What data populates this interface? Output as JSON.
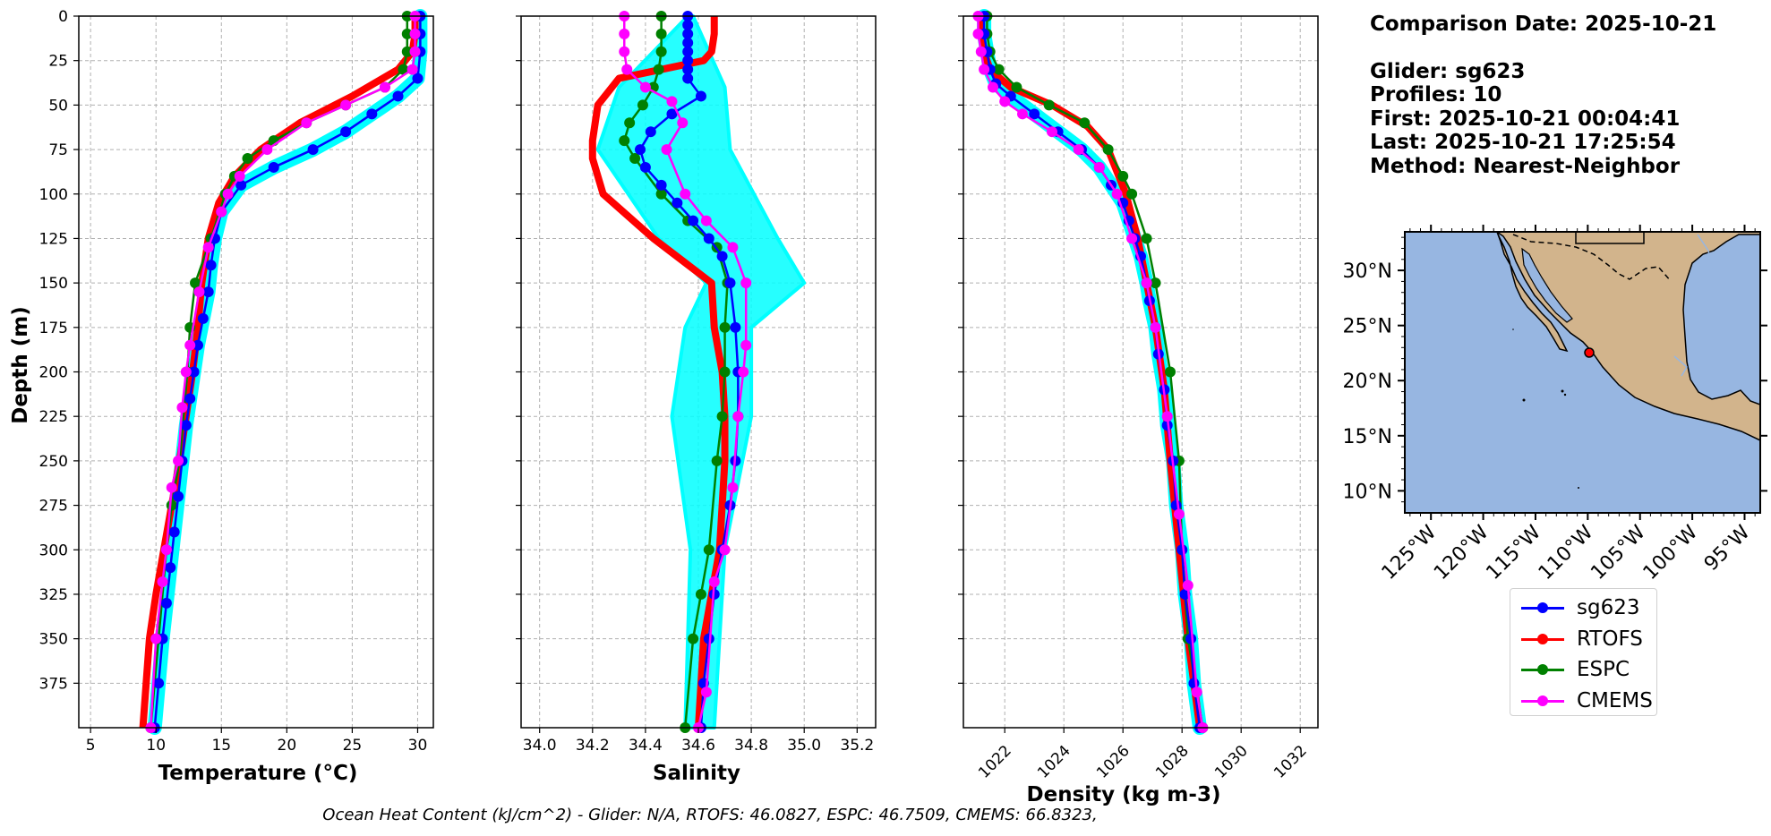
{
  "info": {
    "comparison_date": "Comparison Date: 2025-10-21",
    "glider": "Glider: sg623",
    "profiles": "Profiles: 10",
    "first": "First: 2025-10-21 00:04:41",
    "last": "Last: 2025-10-21 17:25:54",
    "method": "Method: Nearest-Neighbor"
  },
  "footer": "Ocean Heat Content (kJ/cm^2) - Glider: N/A,  RTOFS: 46.0827,  ESPC: 46.7509,  CMEMS: 66.8323,",
  "legend": [
    {
      "name": "sg623",
      "color": "#0000ff"
    },
    {
      "name": "RTOFS",
      "color": "#ff0000"
    },
    {
      "name": "ESPC",
      "color": "#008000"
    },
    {
      "name": "CMEMS",
      "color": "#ff00ff"
    }
  ],
  "colors": {
    "obs_cloud": "#00ffff",
    "land": "#d2b48c",
    "ocean": "#97b6e1"
  },
  "chart_data": [
    {
      "type": "line",
      "xlabel": "Temperature (°C)",
      "ylabel": "Depth (m)",
      "xlim": [
        4.1,
        31.2
      ],
      "ylim": [
        400,
        0
      ],
      "xticks": [
        5,
        10,
        15,
        20,
        25,
        30
      ],
      "yticks": [
        0,
        25,
        50,
        75,
        100,
        125,
        150,
        175,
        200,
        225,
        250,
        275,
        300,
        325,
        350,
        375
      ],
      "grid": true,
      "series": [
        {
          "name": "sg623",
          "x": [
            30.2,
            30.2,
            30.2,
            30.0,
            28.5,
            26.5,
            24.5,
            22.0,
            19.0,
            16.5,
            15.0,
            14.5,
            14.2,
            14.0,
            13.6,
            13.2,
            12.9,
            12.6,
            12.3,
            12.0,
            11.7,
            11.4,
            11.1,
            10.8,
            10.5,
            10.2,
            9.9
          ],
          "y": [
            0,
            10,
            20,
            35,
            45,
            55,
            65,
            75,
            85,
            95,
            110,
            125,
            140,
            155,
            170,
            185,
            200,
            215,
            230,
            250,
            270,
            290,
            310,
            330,
            350,
            375,
            400
          ]
        },
        {
          "name": "RTOFS",
          "x": [
            29.8,
            29.8,
            29.6,
            28.5,
            25.0,
            21.0,
            18.0,
            16.0,
            14.8,
            14.0,
            13.5,
            13.2,
            12.8,
            12.3,
            11.8,
            11.2,
            10.6,
            10.0,
            9.5,
            9.0
          ],
          "y": [
            0,
            10,
            20,
            30,
            45,
            60,
            75,
            90,
            105,
            125,
            150,
            175,
            200,
            225,
            250,
            275,
            300,
            325,
            350,
            400
          ]
        },
        {
          "name": "ESPC",
          "x": [
            29.2,
            29.2,
            29.2,
            28.9,
            27.5,
            24.5,
            21.5,
            19.0,
            17.0,
            16.0,
            15.3,
            14.2,
            13.0,
            12.6,
            12.4,
            11.8,
            11.2,
            10.8,
            10.2,
            9.6
          ],
          "y": [
            0,
            10,
            20,
            30,
            40,
            50,
            60,
            70,
            80,
            90,
            100,
            125,
            150,
            175,
            200,
            250,
            275,
            300,
            350,
            400
          ]
        },
        {
          "name": "CMEMS",
          "x": [
            29.8,
            29.8,
            29.8,
            29.6,
            27.5,
            24.5,
            21.5,
            18.5,
            16.4,
            15.5,
            15.0,
            14.0,
            13.3,
            12.6,
            12.3,
            12.0,
            11.7,
            11.2,
            10.8,
            10.5,
            10.0,
            9.6
          ],
          "y": [
            0,
            10,
            20,
            30,
            40,
            50,
            60,
            75,
            90,
            100,
            110,
            130,
            155,
            185,
            200,
            220,
            250,
            265,
            300,
            318,
            350,
            400
          ]
        }
      ]
    },
    {
      "type": "line",
      "xlabel": "Salinity",
      "ylim": [
        400,
        0
      ],
      "xlim": [
        33.93,
        35.27
      ],
      "xticks": [
        34.0,
        34.2,
        34.4,
        34.6,
        34.8,
        35.0,
        35.2
      ],
      "grid": true,
      "series": [
        {
          "name": "sg623",
          "x": [
            34.56,
            34.56,
            34.56,
            34.56,
            34.56,
            34.56,
            34.56,
            34.56,
            34.61,
            34.5,
            34.42,
            34.38,
            34.4,
            34.46,
            34.52,
            34.58,
            34.64,
            34.69,
            34.72,
            34.74,
            34.75,
            34.75,
            34.74,
            34.72,
            34.69,
            34.66,
            34.64,
            34.62,
            34.61
          ],
          "y": [
            0,
            5,
            10,
            15,
            20,
            25,
            30,
            35,
            45,
            55,
            65,
            75,
            85,
            95,
            105,
            115,
            125,
            135,
            150,
            175,
            200,
            225,
            250,
            275,
            300,
            325,
            350,
            375,
            400
          ]
        },
        {
          "name": "RTOFS",
          "x": [
            34.66,
            34.66,
            34.65,
            34.62,
            34.3,
            34.22,
            34.2,
            34.2,
            34.24,
            34.43,
            34.65,
            34.66,
            34.69,
            34.7,
            34.7,
            34.68,
            34.65,
            34.62,
            34.6
          ],
          "y": [
            0,
            10,
            20,
            25,
            35,
            50,
            70,
            80,
            100,
            125,
            150,
            175,
            200,
            225,
            250,
            300,
            325,
            350,
            400
          ]
        },
        {
          "name": "ESPC",
          "x": [
            34.46,
            34.46,
            34.46,
            34.45,
            34.43,
            34.39,
            34.34,
            34.32,
            34.36,
            34.46,
            34.56,
            34.67,
            34.71,
            34.7,
            34.7,
            34.69,
            34.67,
            34.64,
            34.61,
            34.58,
            34.55
          ],
          "y": [
            0,
            10,
            20,
            30,
            40,
            50,
            60,
            70,
            80,
            100,
            115,
            130,
            150,
            175,
            200,
            225,
            250,
            300,
            325,
            350,
            400
          ]
        },
        {
          "name": "CMEMS",
          "x": [
            34.32,
            34.32,
            34.32,
            34.33,
            34.4,
            34.5,
            34.54,
            34.48,
            34.55,
            34.63,
            34.73,
            34.78,
            34.78,
            34.77,
            34.75,
            34.73,
            34.7,
            34.66,
            34.63,
            34.6
          ],
          "y": [
            0,
            10,
            20,
            30,
            40,
            48,
            60,
            75,
            100,
            115,
            130,
            150,
            185,
            200,
            225,
            265,
            300,
            318,
            380,
            400
          ]
        }
      ],
      "observation_cloud": {
        "color": "#00ffff",
        "x_min": [
          34.56,
          34.3,
          34.22,
          34.45,
          34.63,
          34.55,
          34.5,
          34.57,
          34.55
        ],
        "x_max": [
          34.58,
          34.7,
          34.72,
          34.9,
          35.0,
          34.8,
          34.8,
          34.7,
          34.66
        ],
        "y": [
          0,
          40,
          75,
          125,
          150,
          175,
          225,
          300,
          400
        ]
      }
    },
    {
      "type": "line",
      "xlabel": "Density (kg m-3)",
      "ylim": [
        400,
        0
      ],
      "xlim": [
        1020.6,
        1032.6
      ],
      "xticks": [
        1022,
        1024,
        1026,
        1028,
        1030,
        1032
      ],
      "grid": true,
      "series": [
        {
          "name": "sg623",
          "x": [
            1021.3,
            1021.3,
            1021.4,
            1021.5,
            1021.7,
            1022.2,
            1023.0,
            1023.8,
            1024.6,
            1025.2,
            1025.6,
            1026.0,
            1026.2,
            1026.4,
            1026.6,
            1026.8,
            1026.9,
            1027.1,
            1027.2,
            1027.4,
            1027.5,
            1027.7,
            1027.8,
            1028.0,
            1028.1,
            1028.3,
            1028.4,
            1028.6
          ],
          "y": [
            0,
            10,
            20,
            30,
            38,
            45,
            55,
            65,
            75,
            85,
            95,
            105,
            115,
            125,
            135,
            150,
            160,
            175,
            190,
            210,
            230,
            250,
            275,
            300,
            325,
            350,
            375,
            400
          ]
        },
        {
          "name": "RTOFS",
          "x": [
            1021.2,
            1021.2,
            1021.3,
            1021.5,
            1022.2,
            1023.6,
            1024.8,
            1025.5,
            1026.1,
            1026.5,
            1026.8,
            1027.1,
            1027.4,
            1027.6,
            1027.9,
            1028.2,
            1028.6
          ],
          "y": [
            0,
            10,
            20,
            30,
            40,
            50,
            62,
            75,
            100,
            125,
            150,
            175,
            210,
            250,
            300,
            350,
            400
          ]
        },
        {
          "name": "ESPC",
          "x": [
            1021.4,
            1021.4,
            1021.5,
            1021.8,
            1022.4,
            1023.5,
            1024.7,
            1025.5,
            1026.0,
            1026.3,
            1026.8,
            1027.1,
            1027.6,
            1027.9,
            1028.0,
            1028.2,
            1028.7
          ],
          "y": [
            0,
            10,
            20,
            30,
            40,
            50,
            60,
            75,
            90,
            100,
            125,
            150,
            200,
            250,
            300,
            350,
            400
          ]
        },
        {
          "name": "CMEMS",
          "x": [
            1021.1,
            1021.1,
            1021.2,
            1021.3,
            1021.6,
            1022.0,
            1022.6,
            1023.6,
            1024.5,
            1025.2,
            1025.8,
            1026.3,
            1026.8,
            1027.1,
            1027.5,
            1027.9,
            1028.2,
            1028.5,
            1028.7
          ],
          "y": [
            0,
            10,
            20,
            30,
            40,
            48,
            55,
            65,
            75,
            85,
            100,
            125,
            150,
            175,
            225,
            280,
            320,
            380,
            400
          ]
        }
      ]
    }
  ],
  "map": {
    "lat_ticks": [
      "30°N",
      "25°N",
      "20°N",
      "15°N",
      "10°N"
    ],
    "lon_ticks": [
      "125°W",
      "120°W",
      "115°W",
      "110°W",
      "105°W",
      "100°W",
      "95°W"
    ],
    "extent": {
      "lon_min": -127.5,
      "lon_max": -93.5,
      "lat_min": 8,
      "lat_max": 33.5
    },
    "glider_position": {
      "lon": -108.5,
      "lat": 22.8
    }
  }
}
